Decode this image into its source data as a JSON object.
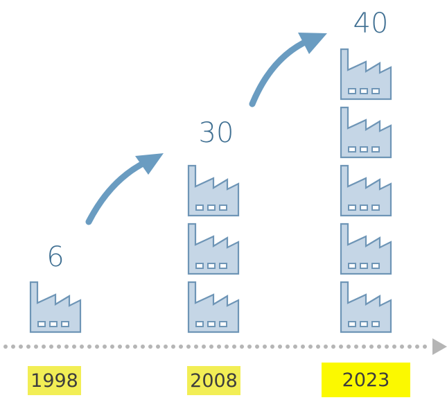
{
  "milestones": [
    {
      "year": "1998",
      "count": "6",
      "factories_drawn": 1
    },
    {
      "year": "2008",
      "count": "30",
      "factories_drawn": 3
    },
    {
      "year": "2023",
      "count": "40",
      "factories_drawn": 5
    }
  ],
  "colors": {
    "factory_fill": "#c5d6e6",
    "factory_stroke": "#6e95b6",
    "arrow": "#6a9cc1",
    "count_text": "#3f6f92",
    "timeline_dots": "#b5b5b5",
    "highlight_past": "#f2ee55",
    "highlight_current": "#fbf900"
  },
  "icons": {
    "factory": "factory-icon",
    "growth_arrow": "curved-arrow-icon",
    "timeline_arrow": "arrow-right-icon"
  }
}
